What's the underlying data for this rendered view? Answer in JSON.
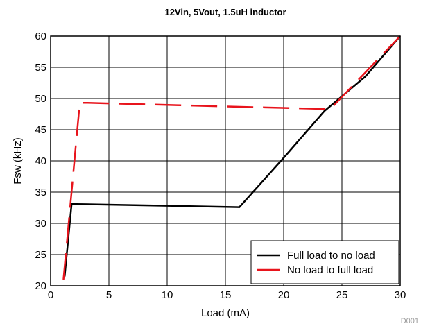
{
  "chart_data": {
    "type": "line",
    "title": "12Vin, 5Vout, 1.5uH inductor",
    "xlabel": "Load (mA)",
    "ylabel": "Fsw (kHz)",
    "xlim": [
      0,
      30
    ],
    "ylim": [
      20,
      60
    ],
    "xticks": [
      "0",
      "5",
      "10",
      "15",
      "20",
      "25",
      "30"
    ],
    "yticks": [
      "20",
      "25",
      "30",
      "35",
      "40",
      "45",
      "50",
      "55",
      "60"
    ],
    "grid": true,
    "legend_position": "bottom-right",
    "series": [
      {
        "name": "Full load to no load",
        "color": "#000000",
        "style": "solid",
        "x": [
          1.2,
          1.8,
          16.2,
          20,
          23.5,
          27,
          30
        ],
        "y": [
          21.5,
          33.1,
          32.6,
          40.5,
          48.0,
          53.5,
          60.0
        ]
      },
      {
        "name": "No load to full load",
        "color": "#e8141c",
        "style": "dashed",
        "x": [
          1.1,
          2.5,
          3.2,
          24.0,
          30.0
        ],
        "y": [
          21.0,
          49.3,
          49.3,
          48.3,
          60.0
        ]
      }
    ],
    "corner_label": "D001"
  }
}
